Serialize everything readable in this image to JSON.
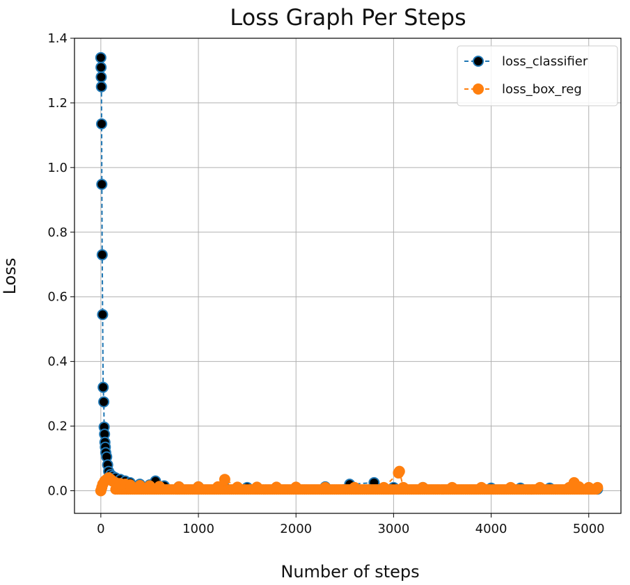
{
  "chart_data": {
    "type": "line",
    "title": "Loss Graph Per Steps",
    "xlabel": "Number of steps",
    "ylabel": "Loss",
    "xlim": [
      -270,
      5330
    ],
    "ylim": [
      -0.07,
      1.4
    ],
    "xticks": [
      0,
      1000,
      2000,
      3000,
      4000,
      5000
    ],
    "yticks": [
      0.0,
      0.2,
      0.4,
      0.6,
      0.8,
      1.0,
      1.2,
      1.4
    ],
    "xtick_labels": [
      "0",
      "1000",
      "2000",
      "3000",
      "4000",
      "5000"
    ],
    "ytick_labels": [
      "0.0",
      "0.2",
      "0.4",
      "0.6",
      "0.8",
      "1.0",
      "1.2",
      "1.4"
    ],
    "grid": true,
    "legend_position": "top-right",
    "series": [
      {
        "name": "loss_classifier",
        "line_color": "#1f77b4",
        "marker_face": "#000000",
        "marker_edge": "#1f77b4",
        "x": [
          0,
          2,
          4,
          6,
          8,
          10,
          14,
          18,
          24,
          30,
          34,
          38,
          42,
          46,
          50,
          60,
          70,
          80,
          100,
          120,
          150,
          200,
          250,
          300,
          400,
          500,
          560,
          650,
          800,
          1000,
          1270,
          1500,
          1800,
          2000,
          2300,
          2550,
          2800,
          3000,
          3300,
          3600,
          4000,
          4300,
          4600,
          4850,
          5000,
          5090
        ],
        "y": [
          1.34,
          1.31,
          1.28,
          1.25,
          1.135,
          0.948,
          0.73,
          0.545,
          0.32,
          0.275,
          0.197,
          0.175,
          0.15,
          0.135,
          0.118,
          0.105,
          0.08,
          0.06,
          0.05,
          0.045,
          0.04,
          0.035,
          0.03,
          0.025,
          0.02,
          0.018,
          0.03,
          0.015,
          0.012,
          0.012,
          0.01,
          0.01,
          0.01,
          0.01,
          0.012,
          0.02,
          0.025,
          0.01,
          0.01,
          0.008,
          0.008,
          0.008,
          0.008,
          0.008,
          0.008,
          0.005
        ]
      },
      {
        "name": "loss_box_reg",
        "line_color": "#ff7f0e",
        "marker_face": "#ff7f0e",
        "marker_edge": "#ff7f0e",
        "x": [
          0,
          10,
          20,
          40,
          60,
          80,
          100,
          120,
          150,
          200,
          250,
          300,
          400,
          500,
          600,
          800,
          1000,
          1200,
          1270,
          1400,
          1600,
          1800,
          2000,
          2300,
          2600,
          2900,
          3050,
          3060,
          3100,
          3300,
          3600,
          3900,
          4200,
          4500,
          4800,
          4850,
          4900,
          5000,
          5090
        ],
        "y": [
          0.0,
          0.01,
          0.02,
          0.03,
          0.035,
          0.04,
          0.035,
          0.03,
          0.025,
          0.022,
          0.02,
          0.018,
          0.016,
          0.015,
          0.013,
          0.012,
          0.012,
          0.012,
          0.035,
          0.011,
          0.011,
          0.011,
          0.011,
          0.01,
          0.01,
          0.01,
          0.055,
          0.06,
          0.01,
          0.01,
          0.01,
          0.01,
          0.01,
          0.01,
          0.01,
          0.025,
          0.012,
          0.01,
          0.01
        ]
      }
    ]
  }
}
